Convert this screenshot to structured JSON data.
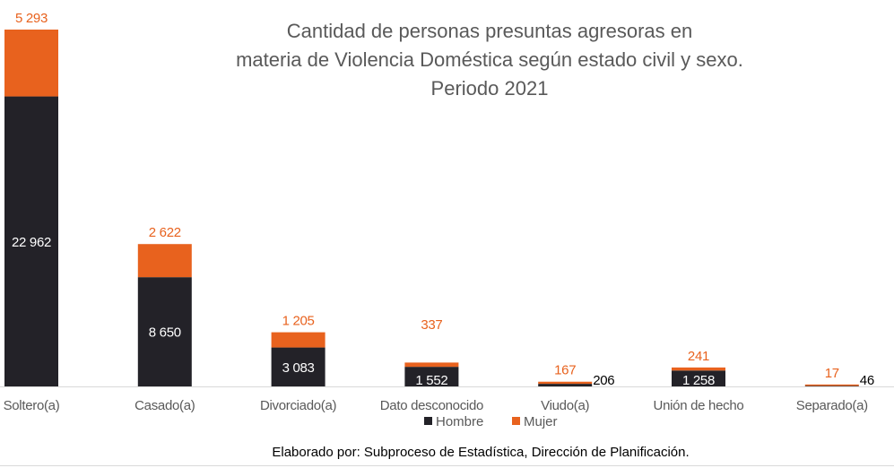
{
  "chart_data": {
    "type": "bar",
    "stacked": true,
    "title": [
      "Cantidad de personas presuntas agresoras en",
      "materia de Violencia Doméstica según estado civil y sexo.",
      "Periodo 2021"
    ],
    "categories": [
      "Soltero(a)",
      "Casado(a)",
      "Divorciado(a)",
      "Dato desconocido",
      "Viudo(a)",
      "Unión de hecho",
      "Separado(a)"
    ],
    "series": [
      {
        "name": "Hombre",
        "color": "#232228",
        "values": [
          22962,
          8650,
          3083,
          1552,
          206,
          1258,
          46
        ],
        "labels": [
          "22 962",
          "8 650",
          "3 083",
          "1 552",
          "206",
          "1 258",
          "46"
        ]
      },
      {
        "name": "Mujer",
        "color": "#e8621e",
        "values": [
          5293,
          2622,
          1205,
          337,
          167,
          241,
          17
        ],
        "labels": [
          "5 293",
          "2 622",
          "1 205",
          "337",
          "167",
          "241",
          "17"
        ]
      }
    ],
    "ylim": [
      0,
      28255
    ],
    "grid": false,
    "legend_position": "bottom",
    "xlabel": "",
    "ylabel": ""
  },
  "footer": {
    "source": "Elaborado por: Subproceso de Estadística, Dirección de Planificación."
  }
}
